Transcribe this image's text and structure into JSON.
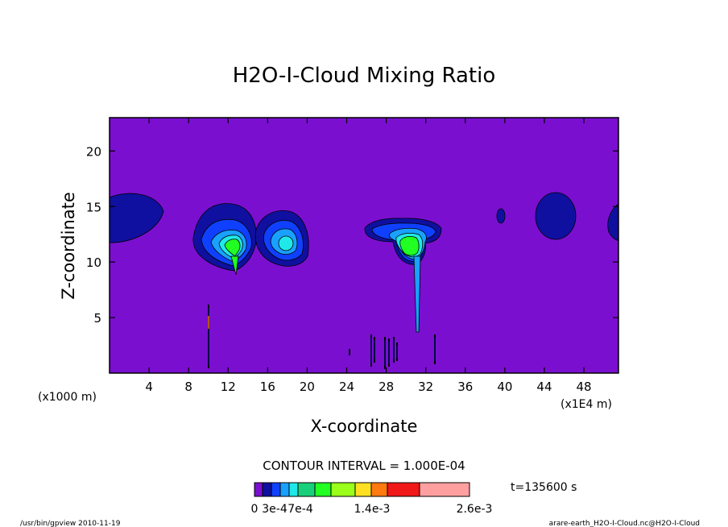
{
  "chart_data": {
    "type": "heatmap",
    "title": "H2O-I-Cloud Mixing Ratio",
    "xlabel": "X-coordinate",
    "ylabel": "Z-coordinate",
    "x_unit_left": "(x1000 m)",
    "x_unit_right": "(x1E4 m)",
    "xlim": [
      0,
      51.5
    ],
    "ylim": [
      0,
      23
    ],
    "x_ticks": [
      4,
      8,
      12,
      16,
      20,
      24,
      28,
      32,
      36,
      40,
      44,
      48
    ],
    "y_ticks": [
      5,
      10,
      15,
      20
    ],
    "background_value": 0,
    "background_color": "#7a0fd0",
    "contour_interval": "CONTOUR INTERVAL = 1.000E-04",
    "time_label": "t=135600 s",
    "colorbar": {
      "colors": [
        "#7a0fd0",
        "#0f10a0",
        "#1040ff",
        "#1aa0ff",
        "#20e8e8",
        "#19d07a",
        "#22ff22",
        "#9aff1a",
        "#ffe020",
        "#ff7a10",
        "#f01818",
        "#ff9f9f"
      ],
      "tick_labels": [
        "0",
        "3e-4",
        "7e-4",
        "1.4e-3",
        "2.6e-3"
      ]
    },
    "features": [
      {
        "name": "left-edge anvil",
        "x": 1.5,
        "z": 14.5,
        "max_level": 1
      },
      {
        "name": "cloud A",
        "x": 12.5,
        "z": 12.0,
        "max_level": 6
      },
      {
        "name": "cloud B",
        "x": 18.0,
        "z": 12.0,
        "max_level": 4
      },
      {
        "name": "cloud C",
        "x": 30.5,
        "z": 12.0,
        "max_level": 6
      },
      {
        "name": "small patch",
        "x": 39.5,
        "z": 14.0,
        "max_level": 1
      },
      {
        "name": "right anvil",
        "x": 44.8,
        "z": 14.5,
        "max_level": 1
      },
      {
        "name": "right-edge anvil",
        "x": 51.0,
        "z": 13.0,
        "max_level": 1
      }
    ]
  },
  "footer": {
    "left": "/usr/bin/gpview   2010-11-19",
    "right": "arare-earth_H2O-I-Cloud.nc@H2O-I-Cloud"
  }
}
